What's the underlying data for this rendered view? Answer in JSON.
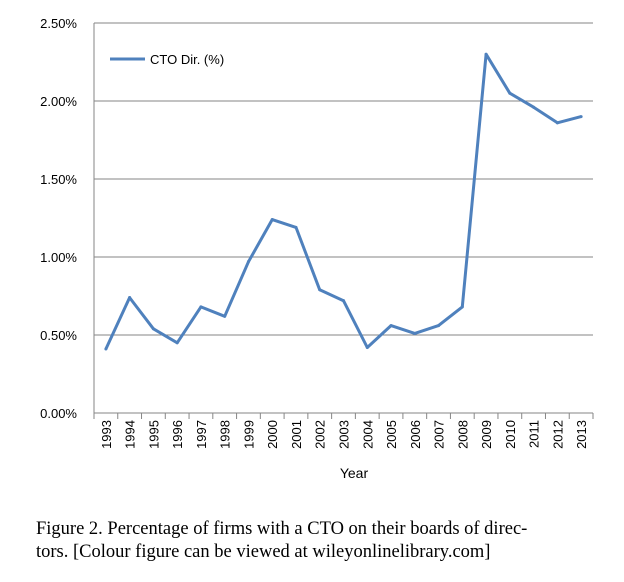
{
  "chart_data": {
    "type": "line",
    "xlabel": "Year",
    "ylabel": "",
    "ylim": [
      0,
      0.025
    ],
    "y_ticks": [
      "0.00%",
      "0.50%",
      "1.00%",
      "1.50%",
      "2.00%",
      "2.50%"
    ],
    "x": [
      "1993",
      "1994",
      "1995",
      "1996",
      "1997",
      "1998",
      "1999",
      "2000",
      "2001",
      "2002",
      "2003",
      "2004",
      "2005",
      "2006",
      "2007",
      "2008",
      "2009",
      "2010",
      "2011",
      "2012",
      "2013"
    ],
    "series": [
      {
        "name": "CTO Dir. (%)",
        "color": "#4F81BD",
        "values": [
          0.0041,
          0.0074,
          0.0054,
          0.0045,
          0.0068,
          0.0062,
          0.0097,
          0.0124,
          0.0119,
          0.0079,
          0.0072,
          0.0042,
          0.0056,
          0.0051,
          0.0056,
          0.0068,
          0.023,
          0.0205,
          0.0196,
          0.0186,
          0.019
        ]
      }
    ],
    "grid": "horizontal",
    "legend_position": "top-left"
  },
  "caption": {
    "line1": "Figure 2.  Percentage of firms with a CTO on their boards of direc-",
    "line2": "tors. [Colour figure can be viewed at wileyonlinelibrary.com]"
  }
}
